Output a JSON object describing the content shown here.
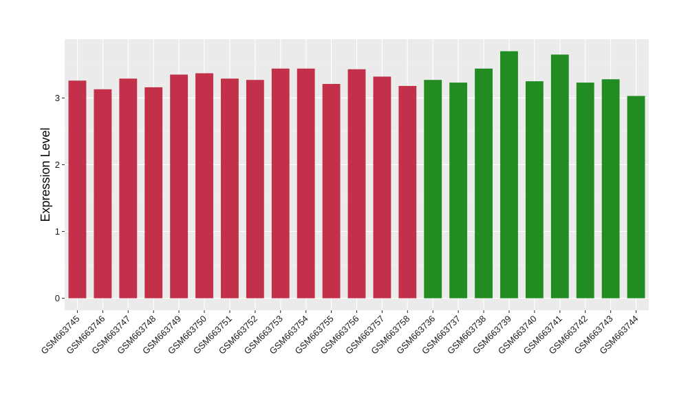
{
  "chart_data": {
    "type": "bar",
    "title": "",
    "xlabel": "",
    "ylabel": "Expression Level",
    "ylim": [
      -0.18,
      3.88
    ],
    "yticks": [
      0,
      1,
      2,
      3
    ],
    "grid": true,
    "background": "#EBEBEB",
    "categories": [
      "GSM663745",
      "GSM663746",
      "GSM663747",
      "GSM663748",
      "GSM663749",
      "GSM663750",
      "GSM663751",
      "GSM663752",
      "GSM663753",
      "GSM663754",
      "GSM663755",
      "GSM663756",
      "GSM663757",
      "GSM663758",
      "GSM663736",
      "GSM663737",
      "GSM663738",
      "GSM663739",
      "GSM663740",
      "GSM663741",
      "GSM663742",
      "GSM663743",
      "GSM663744"
    ],
    "values": [
      3.26,
      3.13,
      3.29,
      3.16,
      3.35,
      3.37,
      3.29,
      3.27,
      3.44,
      3.44,
      3.21,
      3.43,
      3.32,
      3.18,
      3.27,
      3.23,
      3.44,
      3.7,
      3.25,
      3.65,
      3.23,
      3.28,
      3.03
    ],
    "group_colors": [
      "#C3304A",
      "#C3304A",
      "#C3304A",
      "#C3304A",
      "#C3304A",
      "#C3304A",
      "#C3304A",
      "#C3304A",
      "#C3304A",
      "#C3304A",
      "#C3304A",
      "#C3304A",
      "#C3304A",
      "#C3304A",
      "#228B22",
      "#228B22",
      "#228B22",
      "#228B22",
      "#228B22",
      "#228B22",
      "#228B22",
      "#228B22",
      "#228B22"
    ]
  }
}
